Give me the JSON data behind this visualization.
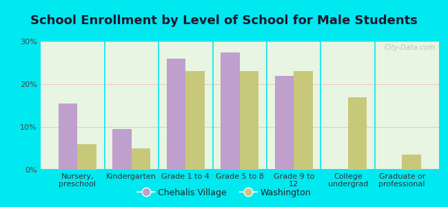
{
  "title": "School Enrollment by Level of School for Male Students",
  "categories": [
    "Nursery,\npreschool",
    "Kindergarten",
    "Grade 1 to 4",
    "Grade 5 to 8",
    "Grade 9 to\n12",
    "College\nundergrad",
    "Graduate or\nprofessional"
  ],
  "chehalis_values": [
    15.5,
    9.5,
    26.0,
    27.5,
    22.0,
    0.0,
    0.0
  ],
  "washington_values": [
    6.0,
    5.0,
    23.0,
    23.0,
    23.0,
    17.0,
    3.5
  ],
  "chehalis_color": "#bf9fcc",
  "washington_color": "#c8c87a",
  "background_outer": "#00e8f0",
  "ylim": [
    0,
    30
  ],
  "yticks": [
    0,
    10,
    20,
    30
  ],
  "ytick_labels": [
    "0%",
    "10%",
    "20%",
    "30%"
  ],
  "bar_width": 0.35,
  "legend_labels": [
    "Chehalis Village",
    "Washington"
  ],
  "watermark": "City-Data.com",
  "title_fontsize": 13,
  "axis_fontsize": 8,
  "legend_fontsize": 9
}
